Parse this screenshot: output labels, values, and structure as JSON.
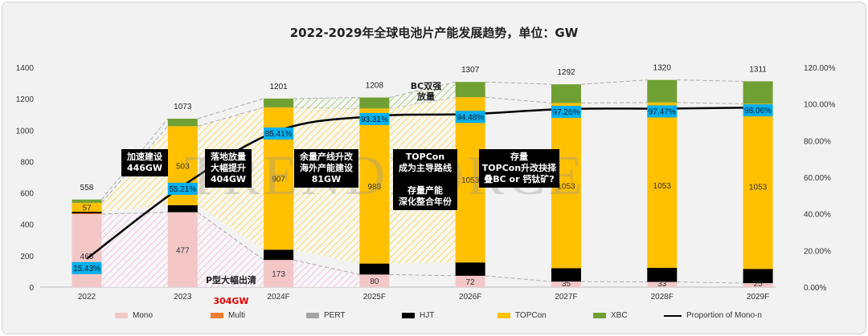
{
  "chart_data": {
    "type": "bar",
    "stacked": true,
    "title": "2022-2029年全球电池片产能发展趋势，单位：GW",
    "categories": [
      "2022",
      "2023",
      "2024F",
      "2025F",
      "2026F",
      "2027F",
      "2028F",
      "2029F"
    ],
    "series": [
      {
        "name": "Mono",
        "color": "#f4c7c7",
        "values": [
          465,
          477,
          173,
          80,
          72,
          35,
          33,
          25
        ]
      },
      {
        "name": "Multi",
        "color": "#ed7d31",
        "values": [
          5,
          0,
          0,
          0,
          0,
          0,
          0,
          0
        ]
      },
      {
        "name": "PERT",
        "color": "#a5a5a5",
        "values": [
          0,
          0,
          0,
          0,
          0,
          0,
          0,
          0
        ]
      },
      {
        "name": "HJT",
        "color": "#000000",
        "values": [
          10,
          45,
          65,
          70,
          85,
          85,
          90,
          90
        ]
      },
      {
        "name": "TOPCon",
        "color": "#ffc000",
        "values": [
          57,
          503,
          907,
          988,
          1053,
          1053,
          1053,
          1053
        ]
      },
      {
        "name": "XBC",
        "color": "#70a033",
        "values": [
          21,
          48,
          56,
          70,
          97,
          119,
          144,
          143
        ]
      }
    ],
    "labeled_segments": {
      "Mono": [
        "465",
        "477",
        "173",
        "80",
        "72",
        "35",
        "33",
        "25"
      ],
      "TOPCon": [
        "57",
        "503",
        "907",
        "988",
        "1053",
        "1053",
        "1053",
        "1053"
      ]
    },
    "totals": [
      558,
      1073,
      1201,
      1208,
      1307,
      1292,
      1320,
      1311
    ],
    "line": {
      "name": "Proportion of Mono-n",
      "color": "#000000",
      "values": [
        15.43,
        55.21,
        85.41,
        93.31,
        94.48,
        97.26,
        97.47,
        98.06
      ],
      "labels": [
        "15.43%",
        "55.21%",
        "85.41%",
        "93.31%",
        "94.48%",
        "97.26%",
        "97.47%",
        "98.06%"
      ]
    },
    "yleft": {
      "ylim": [
        0,
        1400
      ],
      "ticks": [
        "0",
        "200",
        "400",
        "600",
        "800",
        "1000",
        "1200",
        "1400"
      ]
    },
    "yright": {
      "ylim": [
        0,
        120
      ],
      "ticks": [
        "0.00%",
        "20.00%",
        "40.00%",
        "60.00%",
        "80.00%",
        "100.00%",
        "120.00%"
      ]
    },
    "grid": false,
    "legend_position": "bottom",
    "annotations": [
      {
        "text": "加速建设\n446GW"
      },
      {
        "text": "落地放量\n大幅提升\n404GW"
      },
      {
        "text": "余量产线升改\n海外产能建设\n81GW"
      },
      {
        "text": "TOPCon\n成为主导路线\n\n存量产能\n深化整合年份"
      },
      {
        "text": "存量\nTOPCon升改抉择\n叠BC or 钙钛矿?"
      },
      {
        "text": "BC双强\n放量"
      },
      {
        "text": "P型大幅出清",
        "highlight": "304GW",
        "highlight_color": "#e00000"
      }
    ],
    "watermark": "TRENDFORCE"
  }
}
